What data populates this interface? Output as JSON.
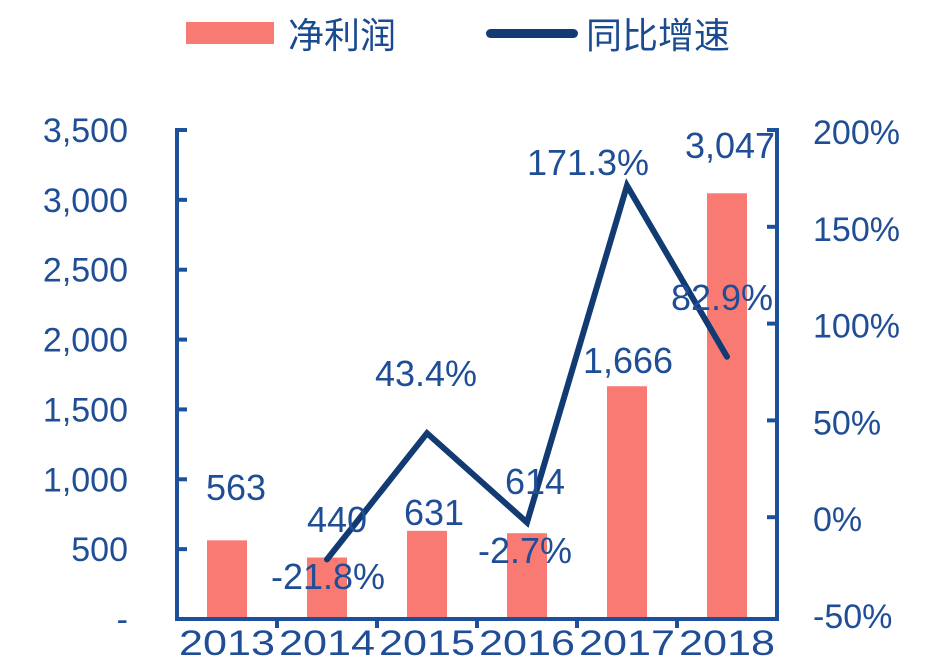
{
  "legend": {
    "bar_label": "净利润",
    "line_label": "同比增速"
  },
  "colors": {
    "bar": "#f97a72",
    "line": "#123a73",
    "axis": "#1c4f9c",
    "text": "#1f4e96"
  },
  "chart_data": {
    "type": "bar+line",
    "title": "",
    "categories": [
      "2013",
      "2014",
      "2015",
      "2016",
      "2017",
      "2018"
    ],
    "series": [
      {
        "name": "净利润",
        "type": "bar",
        "axis": "left",
        "values": [
          563,
          440,
          631,
          614,
          1666,
          3047
        ],
        "labels": [
          "563",
          "440",
          "631",
          "614",
          "1,666",
          "3,047"
        ]
      },
      {
        "name": "同比增速",
        "type": "line",
        "axis": "right",
        "values": [
          null,
          -21.8,
          43.4,
          -2.7,
          171.3,
          82.9
        ],
        "labels": [
          "",
          "-21.8%",
          "43.4%",
          "-2.7%",
          "171.3%",
          "82.9%"
        ]
      }
    ],
    "left_axis": {
      "ylim": [
        0,
        3500
      ],
      "ticks": [
        "-",
        "500",
        "1,000",
        "1,500",
        "2,000",
        "2,500",
        "3,000",
        "3,500"
      ]
    },
    "right_axis": {
      "ylim": [
        -50,
        200
      ],
      "ticks": [
        "-50%",
        "0%",
        "50%",
        "100%",
        "150%",
        "200%"
      ]
    },
    "xlabel": "",
    "ylabel": "",
    "grid": false,
    "legend_position": "top"
  }
}
